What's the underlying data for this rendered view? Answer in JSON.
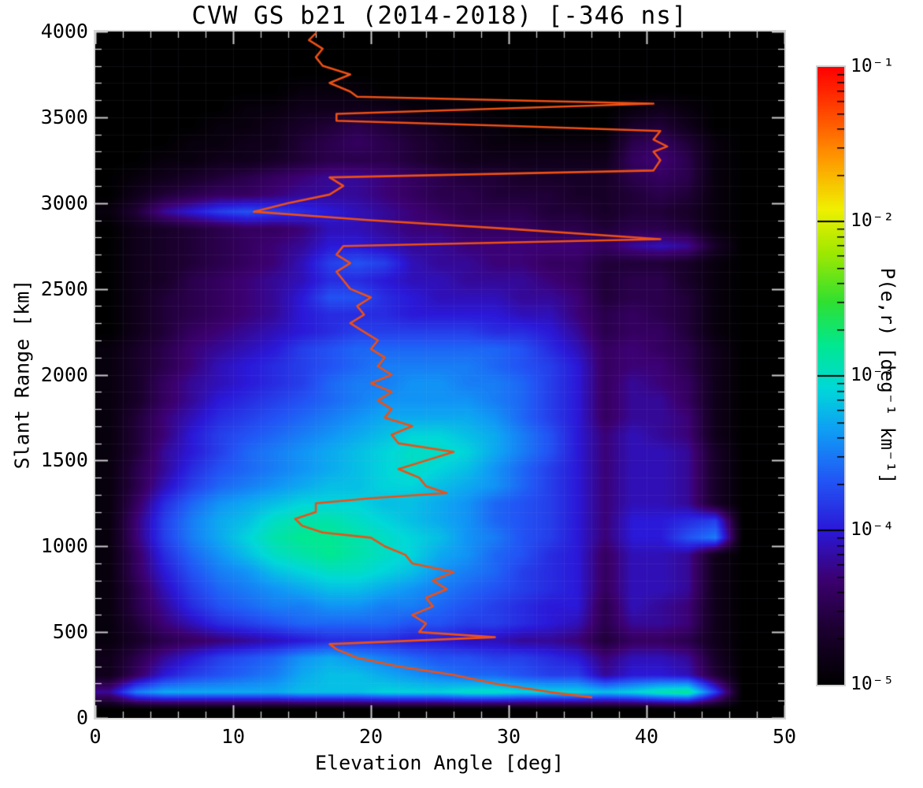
{
  "title": "CVW GS b21 (2014-2018) [-346 ns]",
  "axes": {
    "x": {
      "label": "Elevation Angle [deg]",
      "min": 0,
      "max": 50,
      "major_tick_values": [
        0,
        10,
        20,
        30,
        40,
        50
      ],
      "major_tick_labels": [
        "0",
        "10",
        "20",
        "30",
        "40",
        "50"
      ],
      "minor_step": 2
    },
    "y": {
      "label": "Slant Range [km]",
      "min": 0,
      "max": 4000,
      "major_tick_values": [
        0,
        500,
        1000,
        1500,
        2000,
        2500,
        3000,
        3500,
        4000
      ],
      "major_tick_labels": [
        "0",
        "500",
        "1000",
        "1500",
        "2000",
        "2500",
        "3000",
        "3500",
        "4000"
      ],
      "minor_step": 100
    }
  },
  "colorbar": {
    "label": "P(e,r)  [deg⁻¹ km⁻¹]",
    "scale": "log",
    "min": 1e-05,
    "max": 0.1,
    "tick_labels": [
      "10⁻¹",
      "10⁻²",
      "10⁻³",
      "10⁻⁴",
      "10⁻⁵"
    ],
    "colormap_stops": [
      [
        0.0,
        "#000000"
      ],
      [
        0.09,
        "#1c0030"
      ],
      [
        0.17,
        "#3c0070"
      ],
      [
        0.25,
        "#2a18d8"
      ],
      [
        0.33,
        "#2255f5"
      ],
      [
        0.41,
        "#0f9cf5"
      ],
      [
        0.48,
        "#00d8d8"
      ],
      [
        0.55,
        "#00e890"
      ],
      [
        0.62,
        "#30e030"
      ],
      [
        0.7,
        "#a0e800"
      ],
      [
        0.77,
        "#f0f000"
      ],
      [
        0.86,
        "#ff9000"
      ],
      [
        0.93,
        "#ff4400"
      ],
      [
        1.0,
        "#ff0000"
      ]
    ]
  },
  "chart_data": {
    "type": "heatmap",
    "title": "CVW GS b21 (2014-2018) [-346 ns]",
    "xlabel": "Elevation Angle [deg]",
    "ylabel": "Slant Range [km]",
    "xlim": [
      0,
      50
    ],
    "ylim": [
      0,
      4000
    ],
    "elev_bins": {
      "center_start_deg": 1,
      "step_deg": 2,
      "count": 25
    },
    "range_bins": {
      "center_start_km": 50,
      "step_km": 100,
      "count": 40
    },
    "rows_order": "bottom_to_top",
    "value_encoding": "encoded integer v maps to P = 10^(-5 + v/10) [deg^-1 km^-1]; v=0 is 1e-5 (black), v=40 is 1e-1 (red)",
    "value_max_encoded": 40,
    "grid_values": [
      [
        0,
        0,
        0,
        0,
        0,
        0,
        0,
        0,
        0,
        0,
        0,
        0,
        0,
        0,
        0,
        0,
        0,
        0,
        0,
        0,
        0,
        0,
        0,
        0,
        0
      ],
      [
        8,
        15,
        17,
        17,
        17,
        17,
        17,
        18,
        18,
        18,
        19,
        19,
        19,
        20,
        20,
        19,
        19,
        19,
        18,
        19,
        21,
        22,
        12,
        0,
        0
      ],
      [
        2,
        6,
        10,
        12,
        13,
        14,
        15,
        17,
        18,
        18,
        17,
        16,
        15,
        14,
        14,
        13,
        12,
        12,
        8,
        10,
        10,
        9,
        4,
        0,
        0
      ],
      [
        2,
        5,
        8,
        10,
        12,
        13,
        14,
        16,
        17,
        16,
        15,
        14,
        13,
        13,
        12,
        12,
        11,
        10,
        7,
        9,
        9,
        8,
        3,
        0,
        0
      ],
      [
        1,
        3,
        5,
        6,
        7,
        8,
        9,
        10,
        11,
        11,
        11,
        10,
        10,
        9,
        9,
        8,
        8,
        7,
        4,
        6,
        6,
        5,
        2,
        0,
        0
      ],
      [
        1,
        4,
        7,
        9,
        11,
        12,
        13,
        14,
        14,
        14,
        14,
        13,
        13,
        12,
        12,
        11,
        10,
        9,
        5,
        8,
        8,
        7,
        2,
        0,
        0
      ],
      [
        1,
        5,
        8,
        11,
        13,
        14,
        15,
        15,
        16,
        16,
        15,
        15,
        14,
        13,
        12,
        11,
        10,
        10,
        5,
        9,
        8,
        7,
        2,
        0,
        0
      ],
      [
        1,
        5,
        9,
        12,
        14,
        15,
        16,
        17,
        18,
        18,
        17,
        16,
        15,
        14,
        13,
        12,
        11,
        10,
        6,
        9,
        9,
        8,
        2,
        0,
        0
      ],
      [
        1,
        6,
        10,
        13,
        15,
        16,
        18,
        19,
        20,
        20,
        19,
        18,
        16,
        15,
        14,
        12,
        11,
        10,
        6,
        9,
        9,
        8,
        2,
        0,
        0
      ],
      [
        1,
        6,
        11,
        14,
        16,
        18,
        20,
        21,
        22,
        21,
        20,
        19,
        17,
        16,
        14,
        13,
        11,
        10,
        6,
        9,
        9,
        8,
        2,
        0,
        0
      ],
      [
        1,
        7,
        12,
        15,
        17,
        19,
        21,
        22,
        22,
        21,
        20,
        19,
        18,
        16,
        15,
        13,
        12,
        10,
        7,
        10,
        10,
        13,
        15,
        0,
        0
      ],
      [
        1,
        7,
        12,
        15,
        17,
        18,
        20,
        21,
        21,
        20,
        19,
        18,
        17,
        16,
        14,
        13,
        12,
        10,
        7,
        10,
        10,
        11,
        12,
        0,
        0
      ],
      [
        1,
        6,
        11,
        14,
        16,
        17,
        18,
        19,
        19,
        19,
        18,
        18,
        17,
        16,
        14,
        13,
        12,
        10,
        7,
        9,
        9,
        8,
        3,
        0,
        0
      ],
      [
        1,
        5,
        9,
        12,
        14,
        15,
        16,
        17,
        18,
        18,
        19,
        19,
        18,
        17,
        16,
        14,
        12,
        10,
        7,
        9,
        9,
        8,
        3,
        0,
        0
      ],
      [
        1,
        5,
        8,
        11,
        13,
        14,
        15,
        16,
        17,
        18,
        19,
        20,
        19,
        18,
        16,
        14,
        12,
        10,
        7,
        9,
        9,
        8,
        3,
        0,
        0
      ],
      [
        1,
        4,
        8,
        10,
        12,
        14,
        15,
        16,
        17,
        18,
        19,
        20,
        20,
        19,
        17,
        15,
        13,
        10,
        7,
        9,
        9,
        8,
        3,
        0,
        0
      ],
      [
        1,
        4,
        7,
        10,
        12,
        13,
        14,
        15,
        16,
        17,
        18,
        19,
        19,
        18,
        17,
        15,
        13,
        10,
        7,
        9,
        8,
        7,
        2,
        0,
        0
      ],
      [
        1,
        4,
        7,
        9,
        11,
        12,
        13,
        14,
        15,
        16,
        17,
        17,
        17,
        17,
        16,
        14,
        12,
        10,
        6,
        8,
        8,
        7,
        2,
        0,
        0
      ],
      [
        1,
        3,
        6,
        8,
        10,
        11,
        12,
        13,
        14,
        15,
        16,
        16,
        16,
        16,
        15,
        14,
        12,
        10,
        6,
        8,
        8,
        6,
        2,
        0,
        0
      ],
      [
        1,
        3,
        6,
        8,
        9,
        10,
        11,
        12,
        14,
        15,
        15,
        16,
        16,
        15,
        15,
        14,
        12,
        10,
        6,
        8,
        7,
        6,
        2,
        0,
        0
      ],
      [
        1,
        3,
        5,
        7,
        9,
        10,
        11,
        12,
        13,
        14,
        15,
        15,
        15,
        15,
        14,
        13,
        12,
        10,
        6,
        7,
        7,
        5,
        2,
        0,
        0
      ],
      [
        1,
        3,
        5,
        7,
        8,
        9,
        10,
        12,
        13,
        14,
        14,
        14,
        14,
        14,
        14,
        13,
        11,
        9,
        6,
        7,
        6,
        5,
        2,
        0,
        0
      ],
      [
        0,
        2,
        4,
        6,
        7,
        8,
        9,
        10,
        11,
        12,
        12,
        12,
        12,
        12,
        11,
        11,
        10,
        8,
        5,
        6,
        6,
        4,
        1,
        0,
        0
      ],
      [
        0,
        2,
        4,
        5,
        6,
        7,
        8,
        10,
        11,
        11,
        11,
        10,
        10,
        10,
        10,
        9,
        9,
        7,
        5,
        6,
        5,
        4,
        1,
        0,
        0
      ],
      [
        0,
        2,
        4,
        5,
        6,
        7,
        8,
        10,
        13,
        13,
        11,
        10,
        9,
        9,
        9,
        8,
        8,
        7,
        4,
        5,
        5,
        4,
        1,
        0,
        0
      ],
      [
        0,
        2,
        3,
        5,
        6,
        7,
        8,
        9,
        11,
        11,
        10,
        9,
        9,
        8,
        8,
        8,
        7,
        6,
        4,
        5,
        5,
        3,
        1,
        0,
        0
      ],
      [
        0,
        2,
        3,
        4,
        5,
        6,
        7,
        9,
        12,
        13,
        12,
        9,
        8,
        8,
        7,
        7,
        6,
        6,
        4,
        4,
        4,
        3,
        1,
        0,
        0
      ],
      [
        0,
        2,
        3,
        4,
        5,
        6,
        7,
        8,
        10,
        10,
        9,
        8,
        8,
        7,
        7,
        7,
        7,
        7,
        6,
        8,
        9,
        8,
        3,
        0,
        0
      ],
      [
        0,
        2,
        3,
        4,
        5,
        6,
        6,
        7,
        9,
        9,
        8,
        7,
        7,
        6,
        6,
        6,
        5,
        5,
        4,
        5,
        5,
        4,
        1,
        0,
        0
      ],
      [
        1,
        4,
        8,
        10,
        12,
        13,
        12,
        11,
        10,
        9,
        8,
        7,
        6,
        5,
        5,
        5,
        4,
        4,
        3,
        4,
        4,
        3,
        1,
        0,
        0
      ],
      [
        0,
        2,
        4,
        5,
        6,
        6,
        7,
        8,
        8,
        8,
        7,
        6,
        5,
        5,
        4,
        4,
        4,
        3,
        3,
        4,
        5,
        4,
        1,
        0,
        0
      ],
      [
        0,
        1,
        2,
        3,
        4,
        5,
        6,
        7,
        8,
        8,
        7,
        6,
        5,
        4,
        4,
        3,
        3,
        3,
        3,
        5,
        6,
        5,
        1,
        0,
        0
      ],
      [
        0,
        0,
        1,
        1,
        2,
        2,
        3,
        4,
        5,
        5,
        5,
        4,
        3,
        2,
        2,
        2,
        2,
        2,
        2,
        6,
        7,
        5,
        1,
        0,
        0
      ],
      [
        0,
        0,
        0,
        1,
        1,
        2,
        2,
        4,
        5,
        6,
        5,
        4,
        3,
        2,
        1,
        1,
        1,
        1,
        1,
        5,
        6,
        4,
        1,
        0,
        0
      ],
      [
        0,
        0,
        0,
        0,
        1,
        1,
        2,
        3,
        4,
        5,
        4,
        3,
        2,
        1,
        1,
        0,
        0,
        0,
        0,
        3,
        4,
        2,
        0,
        0,
        0
      ],
      [
        0,
        0,
        0,
        0,
        0,
        1,
        1,
        2,
        2,
        2,
        2,
        1,
        1,
        1,
        0,
        0,
        0,
        0,
        0,
        1,
        2,
        1,
        0,
        0,
        0
      ],
      [
        0,
        0,
        0,
        0,
        0,
        0,
        0,
        1,
        1,
        1,
        0,
        0,
        0,
        0,
        0,
        0,
        0,
        0,
        0,
        0,
        0,
        0,
        0,
        0,
        0
      ],
      [
        0,
        0,
        0,
        0,
        0,
        0,
        0,
        0,
        0,
        0,
        0,
        0,
        0,
        0,
        0,
        0,
        0,
        0,
        0,
        0,
        0,
        0,
        0,
        0,
        0
      ],
      [
        0,
        0,
        0,
        0,
        0,
        0,
        0,
        0,
        0,
        0,
        0,
        0,
        0,
        0,
        0,
        0,
        0,
        0,
        0,
        0,
        0,
        0,
        0,
        0,
        0
      ],
      [
        0,
        0,
        0,
        0,
        0,
        0,
        0,
        0,
        0,
        0,
        0,
        0,
        0,
        0,
        0,
        0,
        0,
        0,
        0,
        0,
        0,
        0,
        0,
        0,
        0
      ]
    ],
    "overlay_line": {
      "name": "elevation-profile-line",
      "color": "#ee5014",
      "points_elev_range": [
        [
          36,
          120
        ],
        [
          33,
          150
        ],
        [
          29,
          200
        ],
        [
          26,
          250
        ],
        [
          22,
          300
        ],
        [
          19,
          350
        ],
        [
          17.5,
          400
        ],
        [
          17,
          430
        ],
        [
          29,
          470
        ],
        [
          23.5,
          500
        ],
        [
          24,
          550
        ],
        [
          23,
          600
        ],
        [
          24.5,
          650
        ],
        [
          24,
          700
        ],
        [
          25.5,
          750
        ],
        [
          24.5,
          800
        ],
        [
          26,
          850
        ],
        [
          23,
          900
        ],
        [
          22.5,
          950
        ],
        [
          21,
          1000
        ],
        [
          20,
          1050
        ],
        [
          16.5,
          1080
        ],
        [
          15,
          1120
        ],
        [
          14.5,
          1160
        ],
        [
          16,
          1200
        ],
        [
          16,
          1250
        ],
        [
          20,
          1280
        ],
        [
          25.5,
          1310
        ],
        [
          24,
          1350
        ],
        [
          23.5,
          1400
        ],
        [
          22,
          1450
        ],
        [
          24,
          1500
        ],
        [
          26,
          1550
        ],
        [
          22,
          1600
        ],
        [
          21.5,
          1650
        ],
        [
          23,
          1700
        ],
        [
          21,
          1750
        ],
        [
          21.5,
          1800
        ],
        [
          20.5,
          1850
        ],
        [
          21.5,
          1900
        ],
        [
          20,
          1950
        ],
        [
          21.5,
          2000
        ],
        [
          20.5,
          2050
        ],
        [
          21,
          2100
        ],
        [
          20,
          2150
        ],
        [
          20.5,
          2200
        ],
        [
          19.5,
          2250
        ],
        [
          18.5,
          2300
        ],
        [
          19.5,
          2350
        ],
        [
          19,
          2400
        ],
        [
          20,
          2450
        ],
        [
          18.5,
          2500
        ],
        [
          18,
          2550
        ],
        [
          17.5,
          2600
        ],
        [
          18.5,
          2650
        ],
        [
          17.5,
          2700
        ],
        [
          18,
          2750
        ],
        [
          41,
          2790
        ],
        [
          30,
          2850
        ],
        [
          20,
          2900
        ],
        [
          11.5,
          2950
        ],
        [
          14,
          3000
        ],
        [
          17,
          3050
        ],
        [
          18,
          3100
        ],
        [
          17,
          3150
        ],
        [
          40.5,
          3190
        ],
        [
          41,
          3250
        ],
        [
          40.5,
          3300
        ],
        [
          41.5,
          3330
        ],
        [
          40.5,
          3370
        ],
        [
          41,
          3420
        ],
        [
          30,
          3450
        ],
        [
          17.5,
          3480
        ],
        [
          17.5,
          3520
        ],
        [
          40.5,
          3580
        ],
        [
          19,
          3620
        ],
        [
          18.5,
          3650
        ],
        [
          17,
          3700
        ],
        [
          18.5,
          3750
        ],
        [
          16.5,
          3800
        ],
        [
          16,
          3850
        ],
        [
          16.5,
          3900
        ],
        [
          15.5,
          3950
        ],
        [
          16,
          3990
        ]
      ]
    }
  }
}
